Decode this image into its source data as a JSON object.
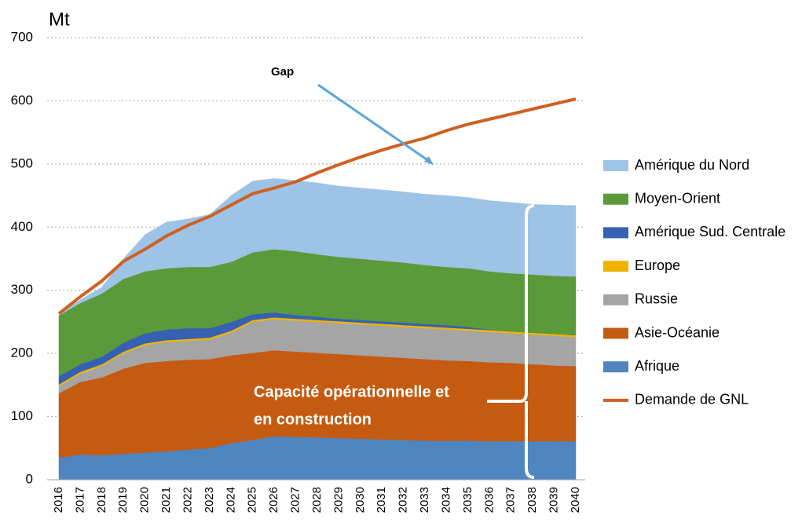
{
  "chart_data": {
    "type": "area",
    "stacked": true,
    "y_label": "Mt",
    "annotations": [
      "Gap",
      "Capacité opérationnelle et",
      "en construction"
    ],
    "categories": [
      "2016",
      "2017",
      "2018",
      "2019",
      "2020",
      "2021",
      "2022",
      "2023",
      "2024",
      "2025",
      "2026",
      "2027",
      "2028",
      "2029",
      "2030",
      "2031",
      "2032",
      "2033",
      "2034",
      "2035",
      "2036",
      "2037",
      "2038",
      "2039",
      "2040"
    ],
    "ylim": [
      0,
      700
    ],
    "yticks": [
      0,
      100,
      200,
      300,
      400,
      500,
      600,
      700
    ],
    "grid": true,
    "legend": "right",
    "series": [
      {
        "name": "Afrique",
        "color": "#4f86c0",
        "values": [
          35,
          40,
          39,
          41,
          43,
          45,
          48,
          50,
          58,
          63,
          69,
          68,
          67,
          66,
          65,
          64,
          63,
          62,
          62,
          62,
          61,
          61,
          61,
          61,
          61
        ]
      },
      {
        "name": "Asie-Océanie",
        "color": "#c55a11",
        "values": [
          102,
          115,
          123,
          135,
          142,
          143,
          142,
          141,
          139,
          138,
          136,
          135,
          134,
          133,
          132,
          131,
          130,
          129,
          127,
          126,
          125,
          124,
          122,
          120,
          119
        ]
      },
      {
        "name": "Russie",
        "color": "#a5a5a5",
        "values": [
          11,
          13,
          18,
          24,
          28,
          30,
          30,
          31,
          36,
          49,
          49,
          49,
          49,
          49,
          49,
          49,
          49,
          49,
          49,
          48,
          48,
          47,
          47,
          47,
          46
        ]
      },
      {
        "name": "Europe",
        "color": "#f0b400",
        "values": [
          3,
          3,
          3,
          3,
          3,
          3,
          3,
          3,
          3,
          3,
          3,
          3,
          3,
          3,
          3,
          3,
          3,
          3,
          3,
          3,
          3,
          3,
          3,
          3,
          3
        ]
      },
      {
        "name": "Amérique Sud. Centrale",
        "color": "#3561b3",
        "values": [
          13,
          12,
          12,
          14,
          16,
          17,
          17,
          15,
          14,
          9,
          8,
          6,
          5,
          4,
          4,
          4,
          4,
          4,
          4,
          3,
          1,
          0,
          0,
          0,
          0
        ]
      },
      {
        "name": "Moyen-Orient",
        "color": "#5b9a3a",
        "values": [
          96,
          97,
          100,
          101,
          98,
          97,
          97,
          97,
          95,
          98,
          100,
          101,
          99,
          98,
          97,
          96,
          95,
          93,
          92,
          93,
          92,
          92,
          92,
          92,
          93
        ]
      },
      {
        "name": "Amérique du Nord",
        "color": "#9dc3e6",
        "values": [
          2,
          5,
          10,
          32,
          58,
          73,
          76,
          83,
          105,
          113,
          112,
          112,
          113,
          112,
          112,
          112,
          112,
          112,
          113,
          112,
          112,
          112,
          111,
          112,
          112
        ]
      },
      {
        "name": "Demande de GNL",
        "color": "#d0601f",
        "type": "line",
        "values": [
          263,
          290,
          315,
          346,
          365,
          386,
          403,
          417,
          435,
          453,
          462,
          472,
          486,
          499,
          511,
          522,
          532,
          541,
          553,
          563,
          571,
          579,
          587,
          595,
          603
        ]
      }
    ]
  }
}
